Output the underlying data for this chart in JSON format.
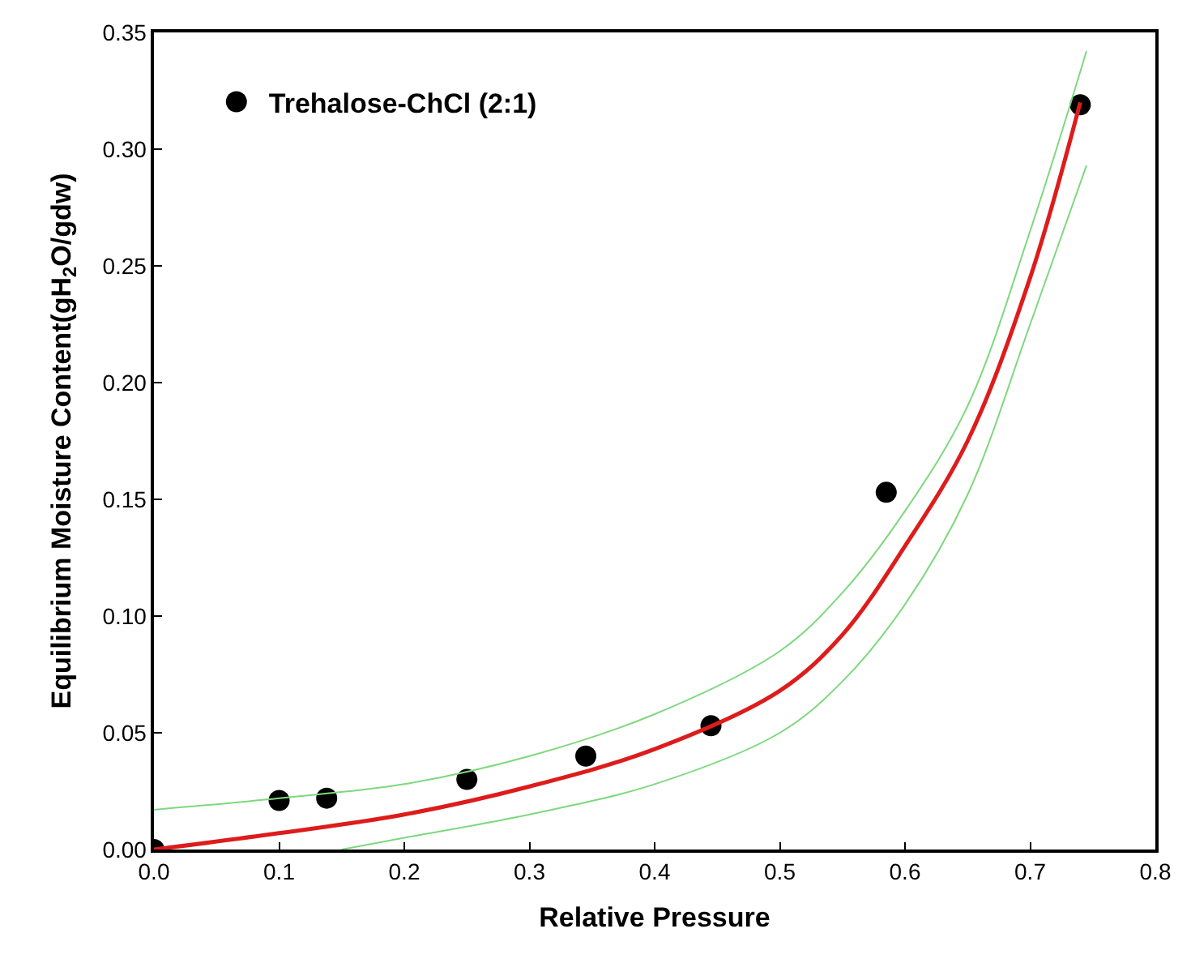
{
  "chart_data": {
    "type": "scatter",
    "xlabel": "Relative Pressure",
    "ylabel": "Equilibrium Moisture Content(gH$_{2}$O/gdw)",
    "xlim": [
      0,
      0.8
    ],
    "ylim": [
      0,
      0.35
    ],
    "xticks": [
      {
        "value": 0,
        "label": "0.0"
      },
      0.1,
      0.2,
      0.3,
      0.4,
      0.5,
      0.6,
      0.7,
      0.8
    ],
    "yticks": [
      {
        "value": 0,
        "label": "0.00"
      },
      0.05,
      {
        "value": 0.1,
        "label": "0.10"
      },
      0.15,
      {
        "value": 0.2,
        "label": "0.20"
      },
      0.25,
      {
        "value": 0.3,
        "label": "0.30"
      },
      0.35
    ],
    "legend": "top left",
    "series": [
      {
        "name": "Trehalose-ChCl (2:1)",
        "marker": "circle",
        "color": "#000000",
        "x": [
          0,
          0.1,
          0.138,
          0.25,
          0.345,
          0.445,
          0.585,
          0.74
        ],
        "values": [
          0,
          0.021,
          0.022,
          0.03,
          0.04,
          0.053,
          0.153,
          0.319
        ]
      },
      {
        "type": "line",
        "color": "#dd1c1c",
        "marker": "none",
        "line_style": "solid",
        "x": [
          0,
          0.1,
          0.2,
          0.3,
          0.4,
          0.5,
          0.55,
          0.6,
          0.65,
          0.7,
          0.74
        ],
        "values": [
          0,
          0.007,
          0.015,
          0.027,
          0.043,
          0.068,
          0.092,
          0.13,
          0.175,
          0.245,
          0.32
        ]
      },
      {
        "type": "line",
        "color": "#7ed87e",
        "marker": "none",
        "line_style": "solid",
        "x": [
          0,
          0.1,
          0.2,
          0.3,
          0.4,
          0.5,
          0.55,
          0.6,
          0.65,
          0.7,
          0.745
        ],
        "values": [
          0.017,
          0.022,
          0.028,
          0.04,
          0.058,
          0.085,
          0.11,
          0.145,
          0.19,
          0.265,
          0.342
        ]
      },
      {
        "type": "line",
        "color": "#7ed87e",
        "marker": "none",
        "line_style": "solid",
        "x": [
          0.15,
          0.2,
          0.3,
          0.4,
          0.5,
          0.55,
          0.6,
          0.65,
          0.7,
          0.745
        ],
        "values": [
          0,
          0.005,
          0.015,
          0.028,
          0.05,
          0.072,
          0.105,
          0.152,
          0.225,
          0.293
        ]
      }
    ]
  }
}
